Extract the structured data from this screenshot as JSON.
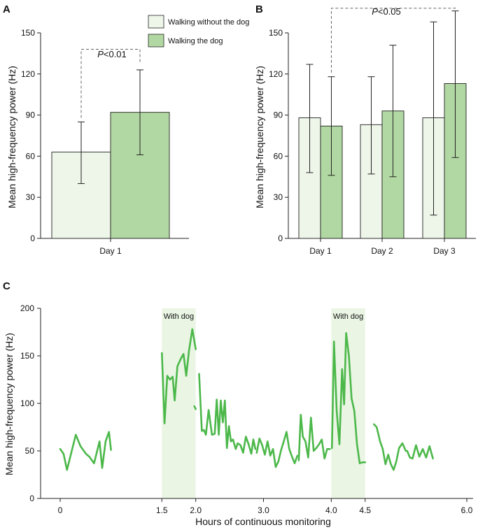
{
  "colors": {
    "without": "#eef6ea",
    "with": "#b1d8a2",
    "line": "#4cb84a",
    "shade": "#eaf5e4",
    "axis": "#222222"
  },
  "chart_data": [
    {
      "panel": "A",
      "type": "bar",
      "ylabel": "Mean high-frequency power (Hz)",
      "ylim": [
        0,
        150
      ],
      "yticks": [
        "0",
        "30",
        "60",
        "90",
        "120",
        "150"
      ],
      "categories": [
        "Day 1"
      ],
      "series": [
        {
          "name": "Walking without the dog",
          "values": [
            63
          ],
          "err_low": [
            40
          ],
          "err_high": [
            85
          ]
        },
        {
          "name": "Walking the dog",
          "values": [
            92
          ],
          "err_low": [
            61
          ],
          "err_high": [
            123
          ]
        }
      ],
      "annotation": {
        "text": "P<0.01",
        "p": "P",
        "rest": "<0.01"
      }
    },
    {
      "panel": "B",
      "type": "bar",
      "ylabel": "Mean high-frequency power (Hz)",
      "ylim": [
        0,
        150
      ],
      "yticks": [
        "0",
        "30",
        "60",
        "90",
        "120",
        "150"
      ],
      "categories": [
        "Day 1",
        "Day 2",
        "Day 3"
      ],
      "series": [
        {
          "name": "Walking without the dog",
          "values": [
            88,
            83,
            88
          ],
          "err_low": [
            48,
            47,
            17
          ],
          "err_high": [
            127,
            118,
            158
          ]
        },
        {
          "name": "Walking the dog",
          "values": [
            82,
            93,
            113
          ],
          "err_low": [
            46,
            45,
            59
          ],
          "err_high": [
            118,
            141,
            166
          ]
        }
      ],
      "annotation": {
        "text": "P<0.05",
        "p": "P",
        "rest": "<0.05"
      }
    },
    {
      "panel": "C",
      "type": "line",
      "xlabel": "Hours of continuous monitoring",
      "ylabel": "Mean high-frequency power (Hz)",
      "xlim": [
        0,
        6
      ],
      "ylim": [
        0,
        200
      ],
      "xticks": [
        "0",
        "1.5",
        "2.0",
        "3.0",
        "4.0",
        "4.5",
        "6.0"
      ],
      "xtick_values": [
        0,
        1.5,
        2.0,
        3.0,
        4.0,
        4.5,
        6.0
      ],
      "yticks": [
        "0",
        "50",
        "100",
        "150",
        "200"
      ],
      "shaded_regions": [
        {
          "x0": 1.5,
          "x1": 2.0,
          "label": "With dog"
        },
        {
          "x0": 4.0,
          "x1": 4.5,
          "label": "With dog"
        }
      ],
      "segments": [
        {
          "x": [
            0.0,
            0.05,
            0.1,
            0.23,
            0.3,
            0.38,
            0.43,
            0.5,
            0.58,
            0.62,
            0.67,
            0.72,
            0.75
          ],
          "y": [
            52,
            47,
            30,
            67,
            55,
            47,
            44,
            37,
            60,
            32,
            60,
            70,
            51
          ]
        },
        {
          "x": [
            1.5,
            1.54,
            1.58,
            1.62,
            1.66,
            1.69,
            1.73,
            1.78,
            1.82,
            1.86,
            1.9,
            1.95,
            2.0
          ],
          "y": [
            153,
            79,
            129,
            125,
            128,
            103,
            139,
            147,
            152,
            129,
            155,
            178,
            157
          ]
        },
        {
          "x": [
            1.98,
            2.0
          ],
          "y": [
            97,
            94
          ]
        },
        {
          "x": [
            2.05,
            2.09,
            2.12,
            2.15,
            2.19,
            2.24,
            2.28,
            2.31,
            2.34,
            2.37,
            2.4,
            2.43,
            2.46,
            2.49,
            2.52,
            2.55,
            2.59,
            2.62,
            2.66,
            2.7,
            2.74,
            2.78,
            2.82,
            2.85,
            2.88
          ],
          "y": [
            131,
            71,
            72,
            67,
            93,
            67,
            68,
            104,
            67,
            103,
            80,
            103,
            53,
            76,
            60,
            62,
            52,
            58,
            56,
            48,
            65,
            57,
            47,
            62,
            52
          ]
        },
        {
          "x": [
            2.9,
            2.94,
            2.98,
            3.02,
            3.06,
            3.1,
            3.14,
            3.18,
            3.22,
            3.26,
            3.3,
            3.34,
            3.38,
            3.42,
            3.46,
            3.5
          ],
          "y": [
            48,
            63,
            56,
            46,
            60,
            45,
            52,
            33,
            39,
            51,
            60,
            70,
            52,
            44,
            37,
            45
          ]
        },
        {
          "x": [
            3.52,
            3.55,
            3.58,
            3.62,
            3.66,
            3.7,
            3.74,
            3.78,
            3.82,
            3.86,
            3.9,
            3.94,
            3.98
          ],
          "y": [
            40,
            88,
            65,
            60,
            43,
            85,
            50,
            53,
            57,
            62,
            42,
            52,
            52
          ]
        },
        {
          "x": [
            4.01,
            4.04,
            4.08,
            4.12,
            4.16,
            4.19,
            4.22,
            4.26,
            4.3,
            4.34,
            4.38,
            4.42,
            4.46,
            4.5
          ],
          "y": [
            53,
            165,
            92,
            57,
            136,
            99,
            174,
            150,
            105,
            92,
            57,
            37,
            38,
            38
          ]
        },
        {
          "x": [
            4.63,
            4.67,
            4.72,
            4.76,
            4.8,
            4.84,
            4.88,
            4.92,
            4.96,
            5.0,
            5.05,
            5.1
          ],
          "y": [
            78,
            75,
            60,
            52,
            36,
            46,
            36,
            30,
            39,
            53,
            58,
            50
          ]
        },
        {
          "x": [
            5.12,
            5.16,
            5.2,
            5.25,
            5.3,
            5.35,
            5.4,
            5.45,
            5.5
          ],
          "y": [
            50,
            43,
            42,
            56,
            44,
            52,
            43,
            55,
            42
          ]
        }
      ]
    }
  ],
  "legend": {
    "without": "Walking without the dog",
    "with": "Walking the dog"
  }
}
